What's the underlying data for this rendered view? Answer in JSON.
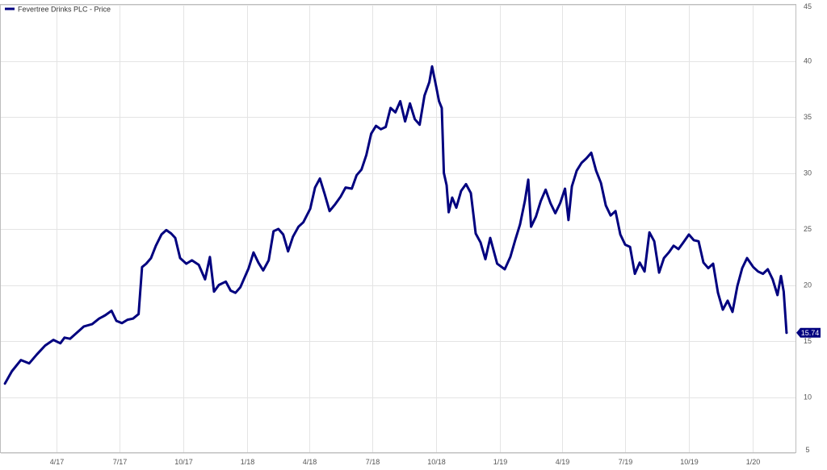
{
  "chart_data": {
    "type": "line",
    "title": "",
    "xlabel": "",
    "ylabel": "",
    "ylim": [
      5,
      45
    ],
    "yticks": [
      5,
      10,
      15,
      20,
      25,
      30,
      35,
      40,
      45
    ],
    "ytick_labels": [
      "5",
      "10",
      "15",
      "20",
      "25",
      "30",
      "35",
      "40",
      "45"
    ],
    "x_tick_labels": [
      "4/17",
      "7/17",
      "10/17",
      "1/18",
      "4/18",
      "7/18",
      "10/18",
      "1/19",
      "4/19",
      "7/19",
      "10/19",
      "1/20"
    ],
    "x_tick_dates": [
      "2017-04-01",
      "2017-07-01",
      "2017-10-01",
      "2018-01-01",
      "2018-04-01",
      "2018-07-01",
      "2018-10-01",
      "2019-01-01",
      "2019-04-01",
      "2019-07-01",
      "2019-10-01",
      "2020-01-01"
    ],
    "x_range": [
      "2017-01-10",
      "2020-03-03"
    ],
    "grid": true,
    "legend_position": "top-left",
    "series": [
      {
        "name": "Fevertree Drinks PLC - Price",
        "color": "#00007f",
        "last_value_label": "15.74",
        "points": [
          [
            "2017-01-16",
            11.2
          ],
          [
            "2017-01-26",
            12.3
          ],
          [
            "2017-02-08",
            13.3
          ],
          [
            "2017-02-20",
            13.0
          ],
          [
            "2017-03-03",
            13.8
          ],
          [
            "2017-03-15",
            14.6
          ],
          [
            "2017-03-27",
            15.1
          ],
          [
            "2017-04-06",
            14.8
          ],
          [
            "2017-04-12",
            15.3
          ],
          [
            "2017-04-20",
            15.2
          ],
          [
            "2017-05-01",
            15.8
          ],
          [
            "2017-05-10",
            16.3
          ],
          [
            "2017-05-22",
            16.5
          ],
          [
            "2017-06-01",
            17.0
          ],
          [
            "2017-06-10",
            17.3
          ],
          [
            "2017-06-19",
            17.7
          ],
          [
            "2017-06-26",
            16.8
          ],
          [
            "2017-07-04",
            16.6
          ],
          [
            "2017-07-12",
            16.9
          ],
          [
            "2017-07-20",
            17.0
          ],
          [
            "2017-07-28",
            17.4
          ],
          [
            "2017-08-02",
            21.6
          ],
          [
            "2017-08-08",
            21.9
          ],
          [
            "2017-08-15",
            22.4
          ],
          [
            "2017-08-22",
            23.5
          ],
          [
            "2017-08-30",
            24.5
          ],
          [
            "2017-09-06",
            24.9
          ],
          [
            "2017-09-13",
            24.6
          ],
          [
            "2017-09-19",
            24.2
          ],
          [
            "2017-09-26",
            22.4
          ],
          [
            "2017-10-05",
            21.9
          ],
          [
            "2017-10-13",
            22.2
          ],
          [
            "2017-10-23",
            21.8
          ],
          [
            "2017-11-01",
            20.5
          ],
          [
            "2017-11-08",
            22.5
          ],
          [
            "2017-11-14",
            19.4
          ],
          [
            "2017-11-21",
            20.0
          ],
          [
            "2017-12-01",
            20.3
          ],
          [
            "2017-12-08",
            19.5
          ],
          [
            "2017-12-15",
            19.3
          ],
          [
            "2017-12-22",
            19.8
          ],
          [
            "2018-01-03",
            21.5
          ],
          [
            "2018-01-10",
            22.9
          ],
          [
            "2018-01-17",
            22.0
          ],
          [
            "2018-01-24",
            21.3
          ],
          [
            "2018-02-01",
            22.2
          ],
          [
            "2018-02-08",
            24.8
          ],
          [
            "2018-02-15",
            25.0
          ],
          [
            "2018-02-22",
            24.5
          ],
          [
            "2018-03-01",
            23.0
          ],
          [
            "2018-03-08",
            24.3
          ],
          [
            "2018-03-16",
            25.2
          ],
          [
            "2018-03-23",
            25.6
          ],
          [
            "2018-04-02",
            26.8
          ],
          [
            "2018-04-09",
            28.7
          ],
          [
            "2018-04-16",
            29.5
          ],
          [
            "2018-04-23",
            28.1
          ],
          [
            "2018-04-30",
            26.6
          ],
          [
            "2018-05-08",
            27.2
          ],
          [
            "2018-05-16",
            27.9
          ],
          [
            "2018-05-23",
            28.7
          ],
          [
            "2018-06-01",
            28.6
          ],
          [
            "2018-06-08",
            29.8
          ],
          [
            "2018-06-15",
            30.3
          ],
          [
            "2018-06-22",
            31.6
          ],
          [
            "2018-06-29",
            33.5
          ],
          [
            "2018-07-06",
            34.2
          ],
          [
            "2018-07-13",
            33.9
          ],
          [
            "2018-07-20",
            34.1
          ],
          [
            "2018-07-27",
            35.8
          ],
          [
            "2018-08-03",
            35.4
          ],
          [
            "2018-08-10",
            36.4
          ],
          [
            "2018-08-17",
            34.6
          ],
          [
            "2018-08-24",
            36.2
          ],
          [
            "2018-08-31",
            34.8
          ],
          [
            "2018-09-07",
            34.3
          ],
          [
            "2018-09-14",
            36.9
          ],
          [
            "2018-09-21",
            38.1
          ],
          [
            "2018-09-25",
            39.5
          ],
          [
            "2018-10-01",
            37.7
          ],
          [
            "2018-10-05",
            36.4
          ],
          [
            "2018-10-09",
            35.8
          ],
          [
            "2018-10-12",
            30.0
          ],
          [
            "2018-10-16",
            28.9
          ],
          [
            "2018-10-19",
            26.5
          ],
          [
            "2018-10-24",
            27.8
          ],
          [
            "2018-10-30",
            26.9
          ],
          [
            "2018-11-06",
            28.4
          ],
          [
            "2018-11-13",
            29.0
          ],
          [
            "2018-11-20",
            28.2
          ],
          [
            "2018-11-27",
            24.6
          ],
          [
            "2018-12-04",
            23.8
          ],
          [
            "2018-12-11",
            22.3
          ],
          [
            "2018-12-18",
            24.2
          ],
          [
            "2018-12-28",
            21.9
          ],
          [
            "2019-01-08",
            21.4
          ],
          [
            "2019-01-16",
            22.5
          ],
          [
            "2019-01-23",
            24.0
          ],
          [
            "2019-01-30",
            25.4
          ],
          [
            "2019-02-06",
            27.5
          ],
          [
            "2019-02-11",
            29.4
          ],
          [
            "2019-02-15",
            25.2
          ],
          [
            "2019-02-22",
            26.1
          ],
          [
            "2019-03-01",
            27.5
          ],
          [
            "2019-03-08",
            28.5
          ],
          [
            "2019-03-15",
            27.3
          ],
          [
            "2019-03-22",
            26.4
          ],
          [
            "2019-03-29",
            27.3
          ],
          [
            "2019-04-05",
            28.6
          ],
          [
            "2019-04-10",
            25.8
          ],
          [
            "2019-04-15",
            28.8
          ],
          [
            "2019-04-22",
            30.2
          ],
          [
            "2019-04-29",
            30.9
          ],
          [
            "2019-05-06",
            31.3
          ],
          [
            "2019-05-13",
            31.8
          ],
          [
            "2019-05-20",
            30.2
          ],
          [
            "2019-05-27",
            29.1
          ],
          [
            "2019-06-03",
            27.1
          ],
          [
            "2019-06-10",
            26.2
          ],
          [
            "2019-06-17",
            26.6
          ],
          [
            "2019-06-24",
            24.5
          ],
          [
            "2019-07-01",
            23.6
          ],
          [
            "2019-07-08",
            23.4
          ],
          [
            "2019-07-15",
            21.0
          ],
          [
            "2019-07-22",
            22.0
          ],
          [
            "2019-07-29",
            21.2
          ],
          [
            "2019-08-05",
            24.7
          ],
          [
            "2019-08-12",
            23.9
          ],
          [
            "2019-08-19",
            21.1
          ],
          [
            "2019-08-26",
            22.4
          ],
          [
            "2019-09-02",
            22.9
          ],
          [
            "2019-09-09",
            23.5
          ],
          [
            "2019-09-16",
            23.2
          ],
          [
            "2019-09-23",
            23.8
          ],
          [
            "2019-10-01",
            24.5
          ],
          [
            "2019-10-08",
            24.0
          ],
          [
            "2019-10-15",
            23.9
          ],
          [
            "2019-10-22",
            22.0
          ],
          [
            "2019-10-29",
            21.5
          ],
          [
            "2019-11-05",
            21.9
          ],
          [
            "2019-11-12",
            19.3
          ],
          [
            "2019-11-19",
            17.8
          ],
          [
            "2019-11-26",
            18.6
          ],
          [
            "2019-12-03",
            17.6
          ],
          [
            "2019-12-10",
            19.9
          ],
          [
            "2019-12-17",
            21.5
          ],
          [
            "2019-12-24",
            22.4
          ],
          [
            "2020-01-02",
            21.6
          ],
          [
            "2020-01-09",
            21.2
          ],
          [
            "2020-01-16",
            21.0
          ],
          [
            "2020-01-23",
            21.4
          ],
          [
            "2020-01-30",
            20.5
          ],
          [
            "2020-02-06",
            19.1
          ],
          [
            "2020-02-11",
            20.8
          ],
          [
            "2020-02-15",
            19.4
          ],
          [
            "2020-02-19",
            15.74
          ]
        ]
      }
    ]
  }
}
